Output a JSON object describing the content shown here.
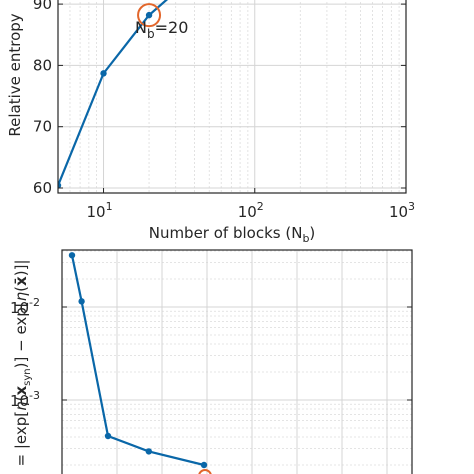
{
  "chart_data": [
    {
      "type": "line",
      "xscale": "log",
      "xlim": [
        5,
        1000
      ],
      "ylim": [
        60,
        92
      ],
      "xticks": [
        10,
        100,
        1000
      ],
      "xtick_labels": [
        {
          "base": "10",
          "exp": "1"
        },
        {
          "base": "10",
          "exp": "2"
        },
        {
          "base": "10",
          "exp": "3"
        }
      ],
      "yticks": [
        60,
        70,
        80,
        90
      ],
      "ytick_labels": [
        "60",
        "70",
        "80",
        "90"
      ],
      "xlabel": {
        "main": "Number of blocks (N",
        "sub": "b",
        "close": ")"
      },
      "ylabel": "Relative entropy",
      "grid": true,
      "series": [
        {
          "x": [
            5,
            10,
            20,
            30
          ],
          "y": [
            60.4,
            78.7,
            88.2,
            92
          ],
          "color": "#0a67a8"
        }
      ],
      "annotation": {
        "x": 20,
        "y": 88.2,
        "main": "N",
        "sub": "b",
        "rest": "=20",
        "circle_color": "#e2662b"
      }
    },
    {
      "type": "line",
      "yscale": "log",
      "xlim": [
        0,
        10
      ],
      "ylim": [
        0.0002,
        0.05
      ],
      "yticks": [
        0.001,
        0.01
      ],
      "ytick_labels": [
        {
          "base": "10",
          "exp": "-3"
        },
        {
          "base": "10",
          "exp": "-2"
        }
      ],
      "ylabel": "= |exp[η(x_syn)] − exp[η(x̄)]|",
      "grid": true,
      "series": [
        {
          "x": [
            0,
            0.4,
            1.5,
            3.2,
            5.5
          ],
          "y": [
            0.036,
            0.0115,
            0.00041,
            0.00028,
            0.0002
          ],
          "color": "#0a67a8"
        }
      ],
      "highlight_color": "#e2662b"
    }
  ]
}
